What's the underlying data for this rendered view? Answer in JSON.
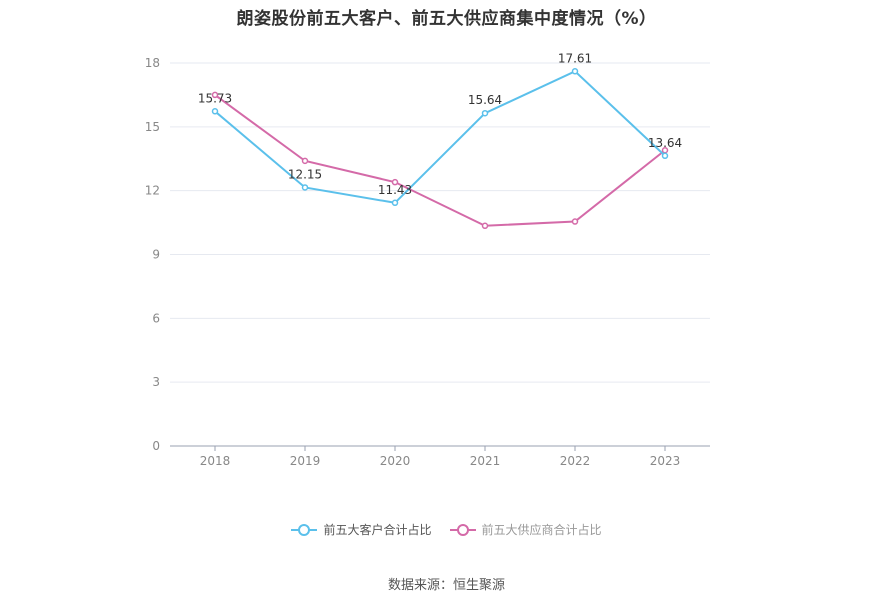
{
  "source_text": "数据来源：恒生聚源",
  "chart_data": {
    "type": "line",
    "title": "朗姿股份前五大客户、前五大供应商集中度情况（%）",
    "categories": [
      "2018",
      "2019",
      "2020",
      "2021",
      "2022",
      "2023"
    ],
    "ylim": [
      0,
      18
    ],
    "yticks": [
      0,
      3,
      6,
      9,
      12,
      15,
      18
    ],
    "grid": true,
    "legend_position": "bottom",
    "series": [
      {
        "name": "前五大客户合计占比",
        "color": "#5bc0eb",
        "values": [
          15.73,
          12.15,
          11.43,
          15.64,
          17.61,
          13.64
        ],
        "labels": [
          "15.73",
          "12.15",
          "11.43",
          "15.64",
          "17.61",
          "13.64"
        ]
      },
      {
        "name": "前五大供应商合计占比",
        "color": "#d46aa8",
        "values": [
          16.5,
          13.4,
          12.4,
          10.35,
          10.55,
          13.9
        ],
        "labels": [
          "",
          "",
          "",
          "",
          "",
          ""
        ]
      }
    ]
  }
}
